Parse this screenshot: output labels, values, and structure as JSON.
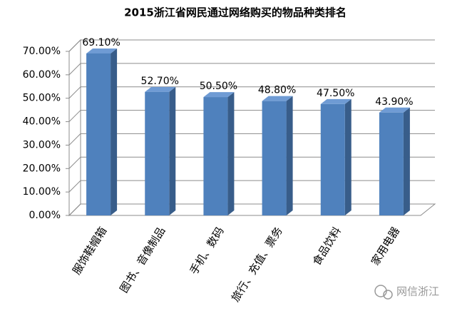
{
  "chart_data": {
    "type": "bar3d",
    "title": "2015浙江省网民通过网络购买的物品种类排名",
    "categories": [
      "服饰鞋帽箱",
      "图书、音像制品",
      "手机、数码",
      "旅行、充值、票务",
      "食品饮料",
      "家用电器"
    ],
    "values": [
      69.1,
      52.7,
      50.5,
      48.8,
      47.5,
      43.9
    ],
    "value_labels": [
      "69.10%",
      "52.70%",
      "50.50%",
      "48.80%",
      "47.50%",
      "43.90%"
    ],
    "color": "#4f81bd",
    "ylim": [
      0,
      70
    ],
    "yticks": [
      {
        "value": 0,
        "label": "0.00%"
      },
      {
        "value": 10,
        "label": "10.00%"
      },
      {
        "value": 20,
        "label": "20.00%"
      },
      {
        "value": 30,
        "label": "30.00%"
      },
      {
        "value": 40,
        "label": "40.00%"
      },
      {
        "value": 50,
        "label": "50.00%"
      },
      {
        "value": 60,
        "label": "60.00%"
      },
      {
        "value": 70,
        "label": "70.00%"
      }
    ],
    "grid": true
  },
  "watermark": "网信浙江"
}
